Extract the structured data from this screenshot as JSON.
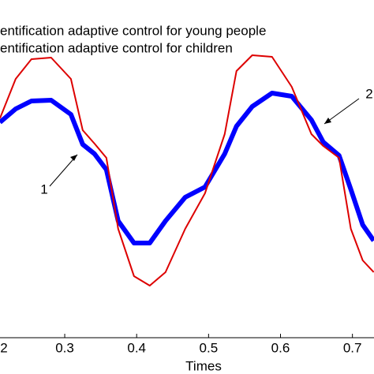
{
  "chart_data": {
    "type": "line",
    "x_label": "Times",
    "x": [
      0.2099,
      0.2318,
      0.2537,
      0.2811,
      0.3086,
      0.325,
      0.3414,
      0.3579,
      0.3743,
      0.3963,
      0.4182,
      0.4401,
      0.4675,
      0.495,
      0.5224,
      0.5388,
      0.5607,
      0.5882,
      0.6156,
      0.643,
      0.6594,
      0.6814,
      0.6978,
      0.7143,
      0.7296
    ],
    "series": [
      {
        "name": "entification adaptive control for young people",
        "color": "#0000ff",
        "values": [
          0.59,
          0.76,
          0.86,
          0.87,
          0.69,
          0.31,
          0.19,
          -0.01,
          -0.66,
          -0.94,
          -0.94,
          -0.66,
          -0.36,
          -0.23,
          0.19,
          0.54,
          0.79,
          0.96,
          0.92,
          0.62,
          0.34,
          0.17,
          -0.26,
          -0.71,
          -0.91
        ]
      },
      {
        "name": "entification adaptive control for children",
        "color": "#dd0000",
        "values": [
          0.64,
          1.14,
          1.39,
          1.41,
          1.14,
          0.49,
          0.32,
          0.14,
          -0.76,
          -1.36,
          -1.48,
          -1.31,
          -0.76,
          -0.31,
          0.44,
          1.24,
          1.44,
          1.42,
          1.04,
          0.44,
          0.29,
          0.14,
          -0.76,
          -1.16,
          -1.31
        ]
      }
    ],
    "annotations": [
      "1",
      "2"
    ],
    "xlim": [
      0.21,
      0.73
    ],
    "xticks": [
      {
        "value": 0.2,
        "label": "2"
      },
      0.3,
      0.4,
      0.5,
      0.6,
      0.7
    ],
    "ylim": [
      -2.14,
      2.14
    ]
  }
}
